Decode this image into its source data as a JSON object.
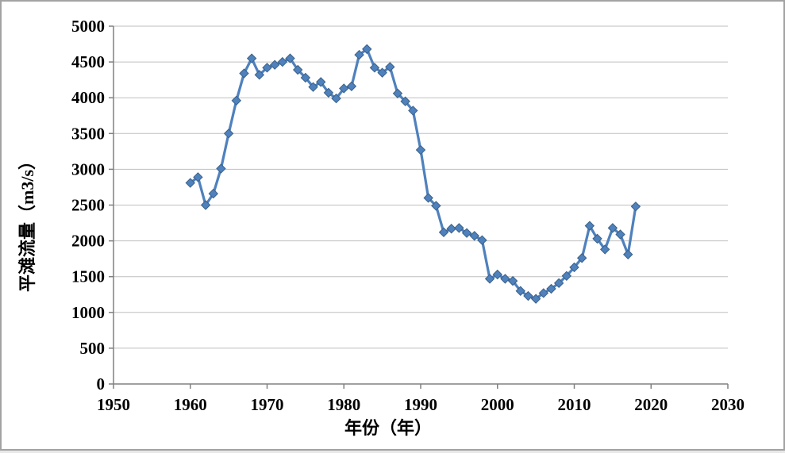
{
  "frame": {
    "background": "#ffffff",
    "border_color": "#a3a3a3"
  },
  "chart_data": {
    "type": "line",
    "title": "",
    "xlabel": "年份（年）",
    "ylabel": "平滩流量（m3/s）",
    "xlim": [
      1950,
      2030
    ],
    "ylim": [
      0,
      5000
    ],
    "xticks": [
      1950,
      1960,
      1970,
      1980,
      1990,
      2000,
      2010,
      2020,
      2030
    ],
    "yticks": [
      0,
      500,
      1000,
      1500,
      2000,
      2500,
      3000,
      3500,
      4000,
      4500,
      5000
    ],
    "grid": "horizontal",
    "legend": "none",
    "marker": "diamond",
    "x": [
      1960,
      1961,
      1962,
      1963,
      1964,
      1965,
      1966,
      1967,
      1968,
      1969,
      1970,
      1971,
      1972,
      1973,
      1974,
      1975,
      1976,
      1977,
      1978,
      1979,
      1980,
      1981,
      1982,
      1983,
      1984,
      1985,
      1986,
      1987,
      1988,
      1989,
      1990,
      1991,
      1992,
      1993,
      1994,
      1995,
      1996,
      1997,
      1998,
      1999,
      2000,
      2001,
      2002,
      2003,
      2004,
      2005,
      2006,
      2007,
      2008,
      2009,
      2010,
      2011,
      2012,
      2013,
      2014,
      2015,
      2016,
      2017,
      2018
    ],
    "values": [
      2810,
      2890,
      2500,
      2660,
      3010,
      3500,
      3960,
      4340,
      4550,
      4320,
      4420,
      4460,
      4500,
      4550,
      4390,
      4280,
      4150,
      4220,
      4070,
      3990,
      4130,
      4160,
      4600,
      4680,
      4420,
      4350,
      4430,
      4060,
      3950,
      3820,
      3270,
      2600,
      2490,
      2120,
      2170,
      2180,
      2110,
      2070,
      2010,
      1470,
      1530,
      1470,
      1440,
      1300,
      1230,
      1190,
      1270,
      1330,
      1410,
      1510,
      1630,
      1760,
      2210,
      2030,
      1880,
      2180,
      2090,
      1810,
      2480
    ],
    "colors": {
      "series": "#4F81BD",
      "marker_fill": "#4F81BD",
      "marker_edge": "#3A6187",
      "gridline": "#BFBFBF",
      "axis": "#808080",
      "tick_label": "#000000"
    }
  }
}
